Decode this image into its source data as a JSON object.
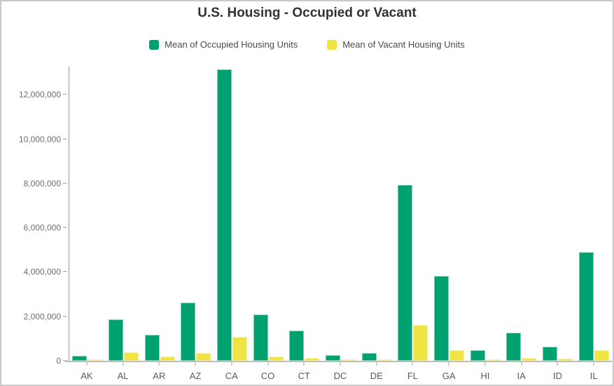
{
  "chart_data": {
    "type": "bar",
    "title": "U.S. Housing - Occupied or Vacant",
    "xlabel": "",
    "ylabel": "",
    "grid": false,
    "legend_position": "top",
    "categories": [
      "AK",
      "AL",
      "AR",
      "AZ",
      "CA",
      "CO",
      "CT",
      "DC",
      "DE",
      "FL",
      "GA",
      "HI",
      "IA",
      "ID",
      "IL"
    ],
    "series": [
      {
        "name": "Mean of Occupied Housing Units",
        "color": "#00a170",
        "edge_color": "#7fceb2",
        "values": [
          230000,
          1850000,
          1160000,
          2620000,
          13150000,
          2100000,
          1360000,
          260000,
          355000,
          7930000,
          3830000,
          460000,
          1280000,
          640000,
          4890000
        ]
      },
      {
        "name": "Mean of Vacant Housing Units",
        "color": "#f0e442",
        "edge_color": "#f5ef9e",
        "values": [
          50000,
          365000,
          175000,
          355000,
          1090000,
          195000,
          120000,
          45000,
          60000,
          1620000,
          480000,
          65000,
          140000,
          80000,
          475000
        ]
      }
    ],
    "ylim": [
      0,
      13270000
    ],
    "yticks": [
      {
        "value": 0,
        "label": "0"
      },
      {
        "value": 2000000,
        "label": "2,000,000"
      },
      {
        "value": 4000000,
        "label": "4,000,000"
      },
      {
        "value": 6000000,
        "label": "6,000,000"
      },
      {
        "value": 8000000,
        "label": "8,000,000"
      },
      {
        "value": 10000000,
        "label": "10,000,000"
      },
      {
        "value": 12000000,
        "label": "12,000,000"
      }
    ]
  }
}
